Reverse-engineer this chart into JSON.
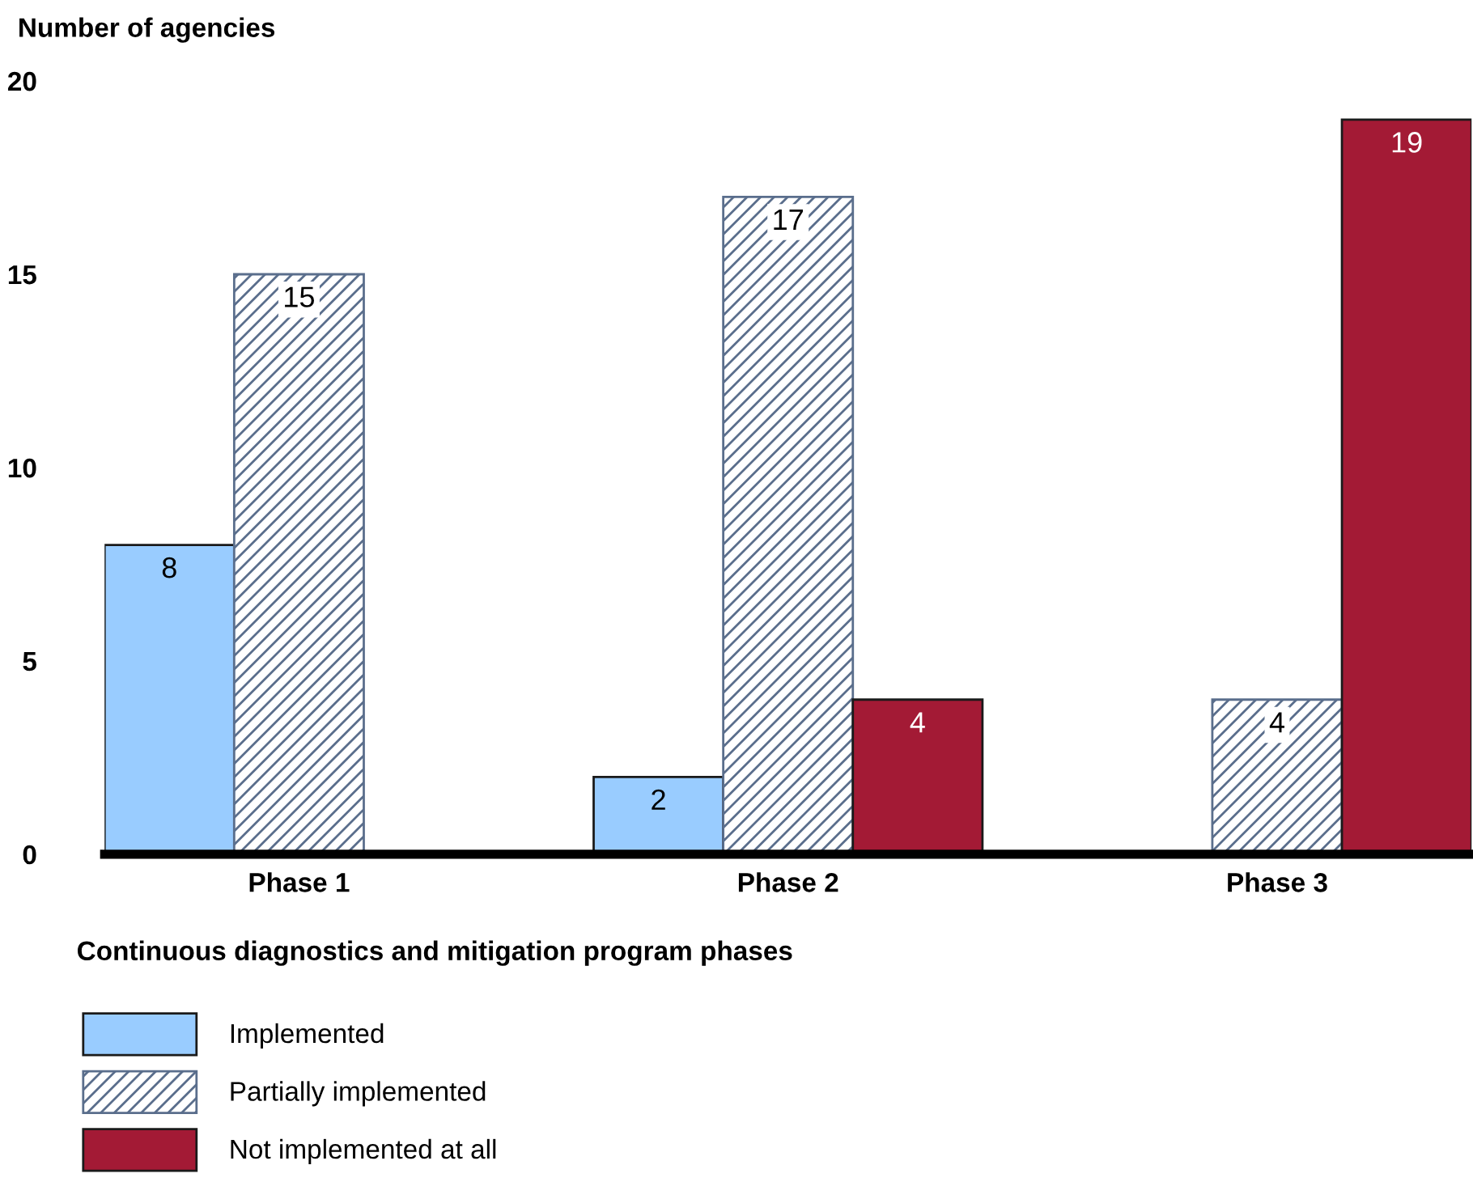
{
  "chart_data": {
    "type": "bar",
    "ylabel": "Number of agencies",
    "xlabel": "Continuous diagnostics and mitigation program phases",
    "categories": [
      "Phase 1",
      "Phase 2",
      "Phase 3"
    ],
    "series": [
      {
        "name": "Implemented",
        "color": "#99ccff",
        "values": [
          8,
          2,
          null
        ]
      },
      {
        "name": "Partially implemented",
        "color": "#5a6e8c",
        "values": [
          15,
          17,
          4
        ]
      },
      {
        "name": "Not implemented at all",
        "color": "#a31a35",
        "values": [
          null,
          4,
          19
        ]
      }
    ],
    "ylim": [
      0,
      20
    ],
    "yticks": [
      0,
      5,
      10,
      15,
      20
    ],
    "data_labels": true,
    "legend": "bottom left",
    "grid": false
  }
}
